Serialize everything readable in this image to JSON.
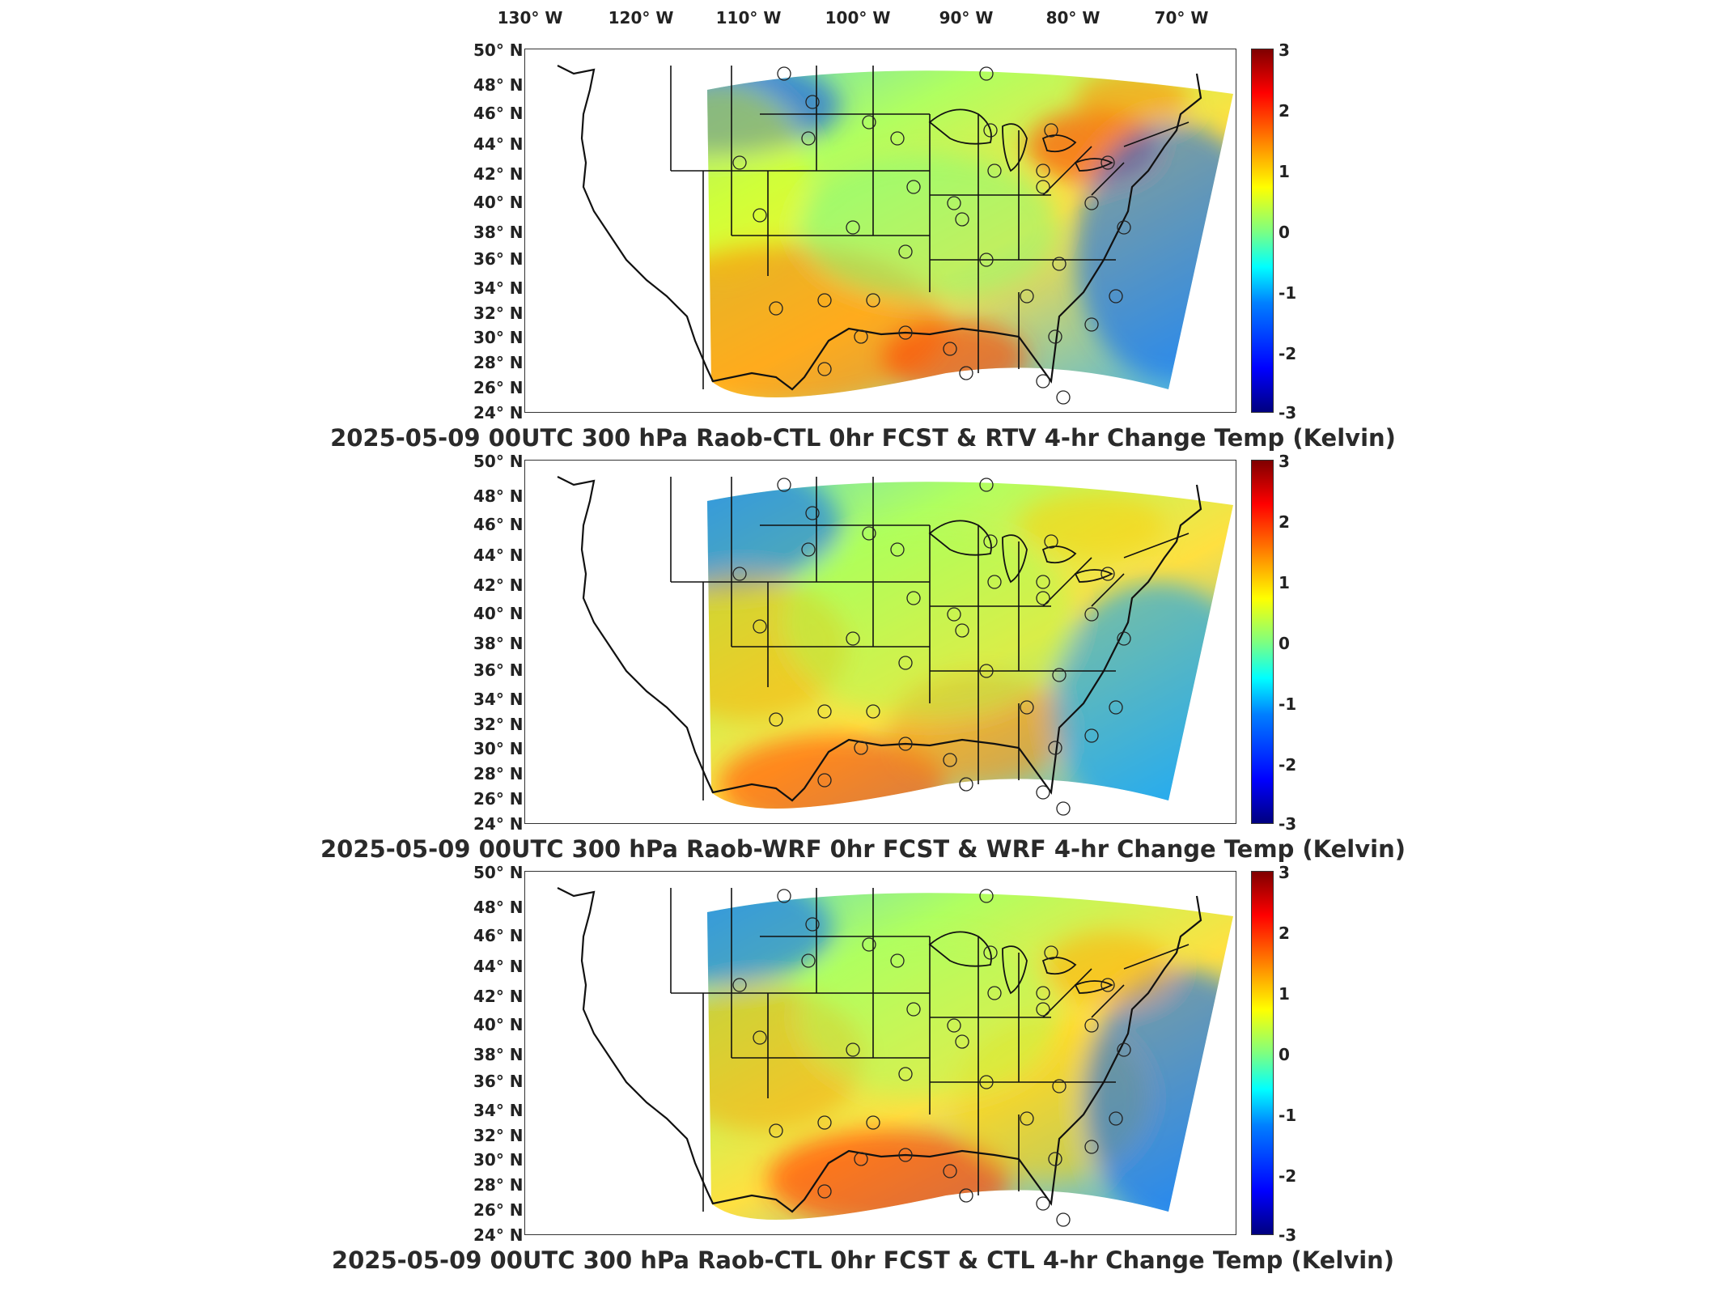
{
  "longitude_labels": [
    "130° W",
    "120° W",
    "110° W",
    "100° W",
    "90° W",
    "80° W",
    "70° W"
  ],
  "latitude_labels": [
    "50° N",
    "48° N",
    "46° N",
    "44° N",
    "42° N",
    "40° N",
    "38° N",
    "36° N",
    "34° N",
    "32° N",
    "30° N",
    "28° N",
    "26° N",
    "24° N"
  ],
  "colorbar_ticks": [
    "3",
    "2",
    "1",
    "0",
    "-1",
    "-2",
    "-3"
  ],
  "colormap": {
    "low": "#00007f",
    "mid": "#7fff7f",
    "high": "#7f0000"
  },
  "panels": [
    {
      "title": "2025-05-09 00UTC 300 hPa Raob-CTL 0hr FCST & RTV 4-hr Change Temp (Kelvin)",
      "field": "RTV"
    },
    {
      "title": "2025-05-09 00UTC 300 hPa Raob-WRF 0hr FCST & WRF 4-hr Change Temp (Kelvin)",
      "field": "WRF"
    },
    {
      "title": "2025-05-09 00UTC 300 hPa Raob-CTL 0hr FCST & CTL 4-hr Change Temp (Kelvin)",
      "field": "CTL"
    }
  ]
}
